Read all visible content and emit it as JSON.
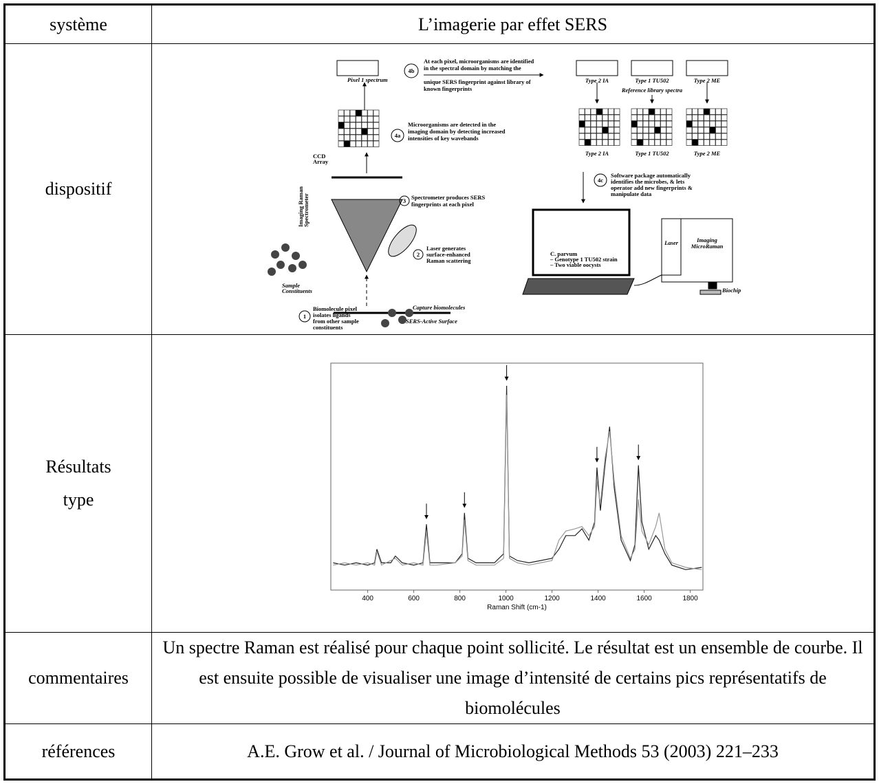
{
  "table": {
    "rows": [
      {
        "label": "système",
        "content": "L’imagerie par effet SERS"
      },
      {
        "label": "dispositif",
        "figure": {
          "pixel_spectrum": "Pixel 1 spectrum",
          "step_4b": "4b",
          "text_4b": [
            "At each pixel, microorganisms are identified",
            "in the spectral domain by matching the",
            "unique SERS fingerprint against library of",
            "known fingerprints"
          ],
          "step_4a": "4a",
          "text_4a": [
            "Microorganisms are detected in the",
            "imaging domain by detecting increased",
            "intensities of key wavebands"
          ],
          "ccd": [
            "CCD",
            "Array"
          ],
          "spectrometer": [
            "Imaging Raman",
            "Spectrometer"
          ],
          "step_3": "3",
          "text_3": [
            "Spectrometer produces SERS",
            "fingerprints at each pixel"
          ],
          "step_2": "2",
          "text_2": [
            "Laser generates",
            "surface-enhanced",
            "Raman scattering"
          ],
          "capture": "Capture biomolecules",
          "surface": "SERS-Active Surface",
          "sample": [
            "Sample",
            "Constituents"
          ],
          "step_1": "1",
          "text_1": [
            "Biomolecule pixel",
            "isolates ligands",
            "from other sample",
            "constituents"
          ],
          "types": [
            "Type 2 IA",
            "Type 1 TU502",
            "Type 2 ME"
          ],
          "reference": "Reference library spectra",
          "step_4c": "4c",
          "text_4c": [
            "Software package automatically",
            "identifies the microbes, & lets",
            "operator add new fingerprints &",
            "manipulate data"
          ],
          "screen": [
            "C. parvum",
            "– Genotype 1 TU502 strain",
            "– Two viable oocysts"
          ],
          "laser": "Laser",
          "instrument": [
            "Imaging",
            "MicroRaman"
          ],
          "biochip": "Biochip"
        }
      },
      {
        "label": "Résultats type",
        "chart_data": {
          "type": "line",
          "xlabel": "Raman Shift (cm-1)",
          "xlim": [
            240,
            1855
          ],
          "xticks": [
            400,
            600,
            800,
            1000,
            1200,
            1400,
            1600,
            1800
          ],
          "ylim": [
            0,
            100
          ],
          "markers": [
            655,
            820,
            1003,
            1395,
            1575
          ],
          "x": [
            250,
            300,
            350,
            400,
            430,
            440,
            460,
            500,
            520,
            550,
            600,
            640,
            655,
            670,
            700,
            780,
            810,
            820,
            835,
            870,
            950,
            990,
            1003,
            1015,
            1050,
            1100,
            1150,
            1200,
            1230,
            1260,
            1300,
            1330,
            1360,
            1385,
            1395,
            1410,
            1430,
            1450,
            1470,
            1500,
            1540,
            1560,
            1575,
            1590,
            1620,
            1650,
            1665,
            1690,
            1720,
            1780,
            1850
          ],
          "series": [
            {
              "color": "#222222",
              "values": [
                12,
                11,
                12,
                11,
                12,
                18,
                12,
                12,
                15,
                12,
                11,
                12,
                29,
                12,
                12,
                12,
                16,
                34,
                14,
                12,
                12,
                16,
                90,
                15,
                13,
                12,
                13,
                14,
                18,
                24,
                24,
                27,
                22,
                30,
                54,
                35,
                55,
                72,
                45,
                22,
                13,
                20,
                55,
                30,
                18,
                24,
                22,
                16,
                11,
                9,
                10
              ]
            },
            {
              "color": "#999999",
              "values": [
                11,
                12,
                11,
                12,
                11,
                17,
                11,
                13,
                14,
                11,
                12,
                11,
                26,
                11,
                11,
                12,
                15,
                31,
                13,
                11,
                11,
                14,
                86,
                14,
                12,
                11,
                12,
                13,
                22,
                26,
                27,
                28,
                24,
                28,
                48,
                38,
                58,
                70,
                48,
                24,
                14,
                18,
                40,
                26,
                20,
                28,
                34,
                18,
                12,
                10,
                9
              ]
            }
          ]
        }
      },
      {
        "label": "commentaires",
        "content": "Un spectre Raman est réalisé pour chaque point sollicité. Le résultat est un ensemble de courbe. Il est ensuite possible de visualiser une image d’intensité de certains pics représentatifs de biomolécules"
      },
      {
        "label": "références",
        "content": "A.E. Grow et al. / Journal of Microbiological Methods 53 (2003) 221–233"
      }
    ]
  }
}
